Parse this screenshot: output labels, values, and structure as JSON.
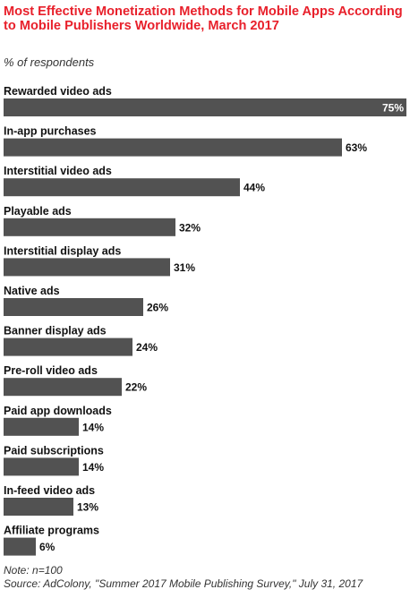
{
  "title": "Most Effective Monetization Methods for Mobile Apps According to Mobile Publishers Worldwide, March 2017",
  "subtitle": "% of respondents",
  "note": "Note: n=100",
  "source": "Source: AdColony, \"Summer 2017 Mobile Publishing Survey,\" July 31, 2017",
  "colors": {
    "title": "#e8202b",
    "bar": "#525252",
    "value_inside": "#ffffff"
  },
  "chart_data": {
    "type": "bar",
    "orientation": "horizontal",
    "categories": [
      "Rewarded video ads",
      "In-app purchases",
      "Interstitial video ads",
      "Playable ads",
      "Interstitial display ads",
      "Native ads",
      "Banner display ads",
      "Pre-roll video ads",
      "Paid app downloads",
      "Paid subscriptions",
      "In-feed video ads",
      "Affiliate programs"
    ],
    "values": [
      75,
      63,
      44,
      32,
      31,
      26,
      24,
      22,
      14,
      14,
      13,
      6
    ],
    "value_suffix": "%",
    "xlim": [
      0,
      75
    ],
    "grid": false,
    "legend": false
  }
}
